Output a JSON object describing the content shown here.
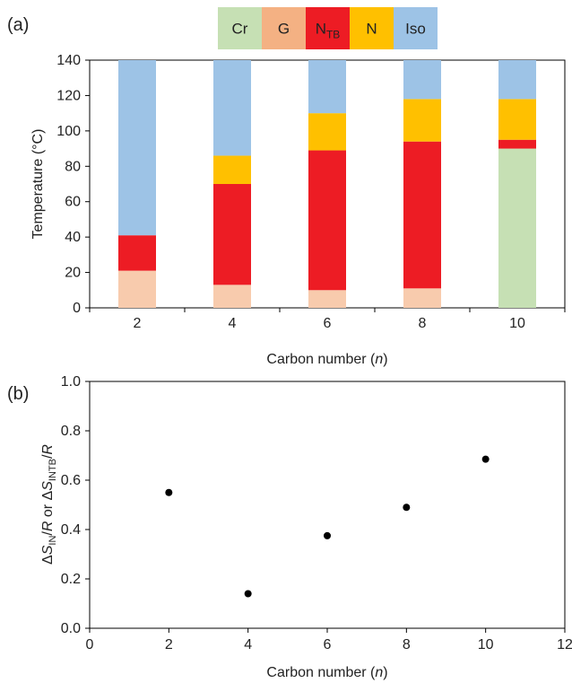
{
  "chart_data": [
    {
      "type": "bar",
      "stacked": true,
      "panel_label": "(a)",
      "categories": [
        "2",
        "4",
        "6",
        "8",
        "10"
      ],
      "legend": [
        {
          "key": "Cr",
          "label": "Cr",
          "sub": "",
          "color": "#c6e0b4"
        },
        {
          "key": "G",
          "label": "G",
          "sub": "",
          "color": "#f4b183"
        },
        {
          "key": "NTB",
          "label": "N",
          "sub": "TB",
          "color": "#ed1c24"
        },
        {
          "key": "N",
          "label": "N",
          "sub": "",
          "color": "#ffc000"
        },
        {
          "key": "Iso",
          "label": "Iso",
          "sub": "",
          "color": "#9dc3e6"
        }
      ],
      "segment_colors": {
        "Cr": "#c6e0b4",
        "G": "#f8cbad",
        "NTB": "#ed1c24",
        "N": "#ffc000",
        "Iso": "#9dc3e6"
      },
      "bars": [
        {
          "category": "2",
          "segments": [
            {
              "phase": "G",
              "from": 0,
              "to": 21
            },
            {
              "phase": "NTB",
              "from": 21,
              "to": 41
            },
            {
              "phase": "Iso",
              "from": 41,
              "to": 140
            }
          ]
        },
        {
          "category": "4",
          "segments": [
            {
              "phase": "G",
              "from": 0,
              "to": 13
            },
            {
              "phase": "NTB",
              "from": 13,
              "to": 70
            },
            {
              "phase": "N",
              "from": 70,
              "to": 86
            },
            {
              "phase": "Iso",
              "from": 86,
              "to": 140
            }
          ]
        },
        {
          "category": "6",
          "segments": [
            {
              "phase": "G",
              "from": 0,
              "to": 10
            },
            {
              "phase": "NTB",
              "from": 10,
              "to": 89
            },
            {
              "phase": "N",
              "from": 89,
              "to": 110
            },
            {
              "phase": "Iso",
              "from": 110,
              "to": 140
            }
          ]
        },
        {
          "category": "8",
          "segments": [
            {
              "phase": "G",
              "from": 0,
              "to": 11
            },
            {
              "phase": "NTB",
              "from": 11,
              "to": 94
            },
            {
              "phase": "N",
              "from": 94,
              "to": 118
            },
            {
              "phase": "Iso",
              "from": 118,
              "to": 140
            }
          ]
        },
        {
          "category": "10",
          "segments": [
            {
              "phase": "Cr",
              "from": 0,
              "to": 90
            },
            {
              "phase": "NTB",
              "from": 90,
              "to": 95
            },
            {
              "phase": "N",
              "from": 95,
              "to": 118
            },
            {
              "phase": "Iso",
              "from": 118,
              "to": 140
            }
          ]
        }
      ],
      "ylim": [
        0,
        140
      ],
      "yticks": [
        "0",
        "20",
        "40",
        "60",
        "80",
        "100",
        "120",
        "140"
      ],
      "ylabel": "Temperature (°C)",
      "xlabel_text": "Carbon number (",
      "xlabel_var": "n",
      "xlabel_end": ")"
    },
    {
      "type": "scatter",
      "panel_label": "(b)",
      "x": [
        2,
        4,
        6,
        8,
        10
      ],
      "y": [
        0.55,
        0.14,
        0.375,
        0.49,
        0.685
      ],
      "xlim": [
        0,
        12
      ],
      "ylim": [
        0,
        1.0
      ],
      "xticks": [
        "0",
        "2",
        "4",
        "6",
        "8",
        "10",
        "12"
      ],
      "yticks": [
        "0.0",
        "0.2",
        "0.4",
        "0.6",
        "0.8",
        "1.0"
      ],
      "ylabel_parts": {
        "delta": "Δ",
        "s": "S",
        "sub1": "IN",
        "slash": "/",
        "r": "R",
        "or": " or ",
        "sub2": "INTB"
      },
      "xlabel_text": "Carbon number (",
      "xlabel_var": "n",
      "xlabel_end": ")",
      "marker_color": "#000000"
    }
  ]
}
